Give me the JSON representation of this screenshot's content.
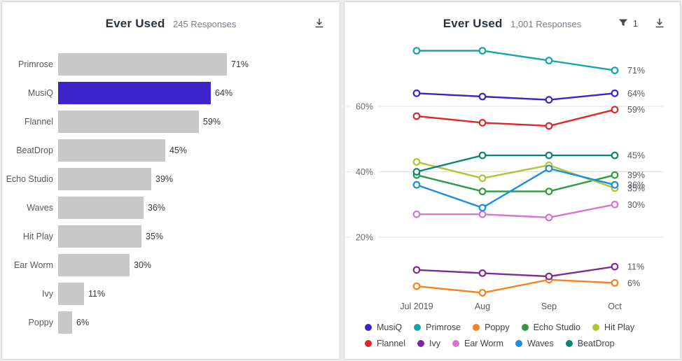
{
  "left_panel": {
    "title": "Ever Used",
    "responses": "245 Responses"
  },
  "right_panel": {
    "title": "Ever Used",
    "responses": "1,001 Responses",
    "filter_count": "1"
  },
  "icons": {
    "download": "download-icon",
    "filter": "filter-funnel-icon"
  },
  "colors": {
    "highlight_blue": "#3c24c8",
    "bar_gray": "#c8c8c8",
    "gridline": "#e1e1e1",
    "axis_text": "#666b70",
    "value_text": "#55595f"
  },
  "chart_data": [
    {
      "type": "bar",
      "orientation": "horizontal",
      "title": "Ever Used",
      "subtitle": "245 Responses",
      "categories": [
        "Primrose",
        "MusiQ",
        "Flannel",
        "BeatDrop",
        "Echo Studio",
        "Waves",
        "Hit Play",
        "Ear Worm",
        "Ivy",
        "Poppy"
      ],
      "values": [
        71,
        64,
        59,
        45,
        39,
        36,
        35,
        30,
        11,
        6
      ],
      "value_labels": [
        "71%",
        "64%",
        "59%",
        "45%",
        "39%",
        "36%",
        "35%",
        "30%",
        "11%",
        "6%"
      ],
      "highlighted_category": "MusiQ",
      "bar_color": "#c8c8c8",
      "highlight_color": "#3c24c8",
      "xlim": [
        0,
        100
      ],
      "grid": false
    },
    {
      "type": "line",
      "title": "Ever Used",
      "subtitle": "1,001 Responses",
      "x": [
        "Jul 2019",
        "Aug",
        "Sep",
        "Oct"
      ],
      "yticks": [
        {
          "label": "60%",
          "value": 60
        },
        {
          "label": "40%",
          "value": 40
        },
        {
          "label": "20%",
          "value": 20
        }
      ],
      "ylim": [
        0,
        85
      ],
      "grid": true,
      "legend_position": "bottom",
      "series": [
        {
          "name": "MusiQ",
          "color": "#3c24c8",
          "values": [
            64,
            63,
            62,
            64
          ],
          "end_label": "64%"
        },
        {
          "name": "Primrose",
          "color": "#16a3ad",
          "values": [
            77,
            77,
            74,
            71
          ],
          "end_label": "71%"
        },
        {
          "name": "Poppy",
          "color": "#f5821e",
          "values": [
            5,
            3,
            7,
            6
          ],
          "end_label": "6%"
        },
        {
          "name": "Echo Studio",
          "color": "#2f9a42",
          "values": [
            39,
            34,
            34,
            39
          ],
          "end_label": "39%"
        },
        {
          "name": "Hit Play",
          "color": "#b1c334",
          "values": [
            43,
            38,
            42,
            35
          ],
          "end_label": "35%"
        },
        {
          "name": "Flannel",
          "color": "#e02828",
          "values": [
            57,
            55,
            54,
            59
          ],
          "end_label": "59%"
        },
        {
          "name": "Ivy",
          "color": "#7d2b9b",
          "values": [
            10,
            9,
            8,
            11
          ],
          "end_label": "11%"
        },
        {
          "name": "Ear Worm",
          "color": "#d973d0",
          "values": [
            27,
            27,
            26,
            30
          ],
          "end_label": "30%"
        },
        {
          "name": "Waves",
          "color": "#1b8fdc",
          "values": [
            36,
            29,
            41,
            36
          ],
          "end_label": "36%"
        },
        {
          "name": "BeatDrop",
          "color": "#0c8577",
          "values": [
            40,
            45,
            45,
            45
          ],
          "end_label": "45%"
        }
      ]
    }
  ]
}
